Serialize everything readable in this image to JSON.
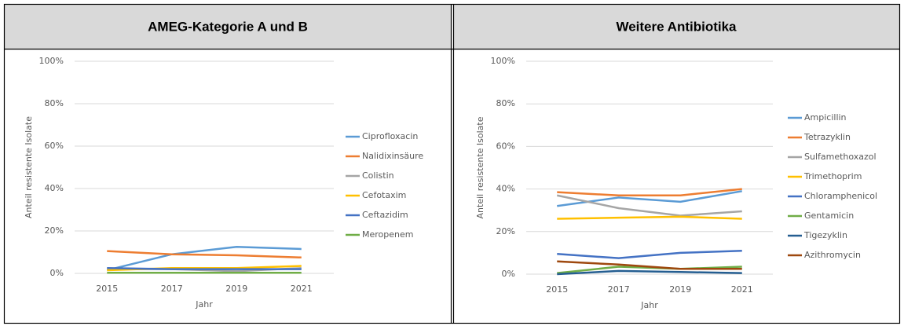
{
  "chart_data": [
    {
      "type": "line",
      "title": "AMEG-Kategorie A und B",
      "x_label": "Jahr",
      "y_label": "Anteil resistente Isolate",
      "categories": [
        "2015",
        "2017",
        "2019",
        "2021"
      ],
      "ylim": [
        0,
        100
      ],
      "yticks": [
        {
          "value": 0,
          "label": "0%"
        },
        {
          "value": 20,
          "label": "20%"
        },
        {
          "value": 40,
          "label": "40%"
        },
        {
          "value": 60,
          "label": "60%"
        },
        {
          "value": 80,
          "label": "80%"
        },
        {
          "value": 100,
          "label": "100%"
        }
      ],
      "grid": true,
      "legend": "right",
      "series": [
        {
          "name": "Ciprofloxacin",
          "color": "#5b9bd5",
          "values": [
            1.5,
            9,
            12.5,
            11.5
          ]
        },
        {
          "name": "Nalidixinsäure",
          "color": "#ed7d31",
          "values": [
            10.5,
            9,
            8.5,
            7.5
          ]
        },
        {
          "name": "Colistin",
          "color": "#a5a5a5",
          "values": [
            2,
            2,
            1,
            2.5
          ]
        },
        {
          "name": "Cefotaxim",
          "color": "#ffc000",
          "values": [
            1.5,
            2.5,
            2.5,
            3.5
          ]
        },
        {
          "name": "Ceftazidim",
          "color": "#4472c4",
          "values": [
            2.5,
            2,
            2,
            2
          ]
        },
        {
          "name": "Meropenem",
          "color": "#70ad47",
          "values": [
            0.3,
            0.3,
            0.3,
            0.3
          ]
        }
      ]
    },
    {
      "type": "line",
      "title": "Weitere Antibiotika",
      "x_label": "Jahr",
      "y_label": "Anteil resistente Isolate",
      "categories": [
        "2015",
        "2017",
        "2019",
        "2021"
      ],
      "ylim": [
        0,
        100
      ],
      "yticks": [
        {
          "value": 0,
          "label": "0%"
        },
        {
          "value": 20,
          "label": "20%"
        },
        {
          "value": 40,
          "label": "40%"
        },
        {
          "value": 60,
          "label": "60%"
        },
        {
          "value": 80,
          "label": "80%"
        },
        {
          "value": 100,
          "label": "100%"
        }
      ],
      "grid": true,
      "legend": "right",
      "series": [
        {
          "name": "Ampicillin",
          "color": "#5b9bd5",
          "values": [
            32,
            36,
            34,
            39
          ]
        },
        {
          "name": "Tetrazyklin",
          "color": "#ed7d31",
          "values": [
            38.5,
            37,
            37,
            40
          ]
        },
        {
          "name": "Sulfamethoxazol",
          "color": "#a5a5a5",
          "values": [
            37,
            31,
            27.5,
            29.5
          ]
        },
        {
          "name": "Trimethoprim",
          "color": "#ffc000",
          "values": [
            26,
            26.5,
            27,
            26
          ]
        },
        {
          "name": "Chloramphenicol",
          "color": "#4472c4",
          "values": [
            9.5,
            7.5,
            10,
            11
          ]
        },
        {
          "name": "Gentamicin",
          "color": "#70ad47",
          "values": [
            0.5,
            3.5,
            2.5,
            3.5
          ]
        },
        {
          "name": "Tigezyklin",
          "color": "#255e91",
          "values": [
            0,
            1.5,
            1,
            0.5
          ]
        },
        {
          "name": "Azithromycin",
          "color": "#9e480e",
          "values": [
            6,
            4.5,
            2.5,
            2.5
          ]
        }
      ]
    }
  ]
}
